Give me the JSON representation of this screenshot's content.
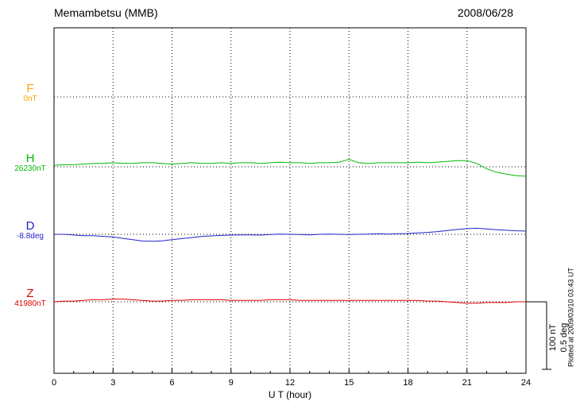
{
  "header": {
    "title": "Memambetsu (MMB)",
    "date": "2008/06/28"
  },
  "x_axis": {
    "label": "U T (hour)",
    "ticks": [
      0,
      3,
      6,
      9,
      12,
      15,
      18,
      21,
      24
    ]
  },
  "scale_bar": {
    "labels": [
      "100 nT",
      "0.5 deg"
    ]
  },
  "footer_note": "Plotted at 2009/03/10 03:43 UT",
  "colors": {
    "F": "#FFA500",
    "H": "#00BB00",
    "D": "#2222CC",
    "Z": "#DD0000",
    "axis": "#000000"
  },
  "chart_data": {
    "type": "line",
    "title": "Memambetsu (MMB)",
    "subtitle": "2008/06/28",
    "xlabel": "U T (hour)",
    "x_range": [
      0,
      24
    ],
    "x_ticks": [
      0,
      3,
      6,
      9,
      12,
      15,
      18,
      21,
      24
    ],
    "x_step_hours": 0.5,
    "grid": "dotted vertical at 3h intervals, dotted horizontal baseline per component",
    "legend_position": "left margin, one colored label per component",
    "scale": {
      "nT_per_bar": 100,
      "deg_per_bar": 0.5
    },
    "series": [
      {
        "name": "F",
        "baseline_label": "0nT",
        "baseline_value": 0,
        "unit": "nT",
        "note": "no visible trace, baseline only",
        "values": []
      },
      {
        "name": "H",
        "baseline_label": "26230nT",
        "baseline_value": 26230,
        "unit": "nT",
        "note": "offsets from baseline in nT",
        "values": [
          2,
          3,
          3,
          4,
          5,
          5,
          6,
          5,
          5,
          6,
          6,
          5,
          4,
          5,
          6,
          5,
          5,
          6,
          5,
          6,
          6,
          5,
          6,
          7,
          6,
          6,
          5,
          6,
          6,
          7,
          11,
          6,
          5,
          6,
          6,
          6,
          6,
          7,
          6,
          7,
          8,
          9,
          9,
          5,
          -3,
          -8,
          -11,
          -13,
          -14
        ]
      },
      {
        "name": "D",
        "baseline_label": "-8.8deg",
        "baseline_value": -8.8,
        "unit": "deg",
        "note": "offsets from baseline in degrees",
        "values": [
          0,
          0,
          -0.005,
          -0.01,
          -0.01,
          -0.015,
          -0.02,
          -0.03,
          -0.04,
          -0.05,
          -0.052,
          -0.048,
          -0.04,
          -0.032,
          -0.024,
          -0.016,
          -0.012,
          -0.008,
          -0.006,
          -0.004,
          -0.004,
          -0.006,
          -0.002,
          0.002,
          0,
          -0.002,
          -0.004,
          0,
          0.002,
          0,
          -0.002,
          0,
          0.002,
          0.004,
          0.002,
          0.004,
          0.006,
          0.01,
          0.014,
          0.02,
          0.028,
          0.036,
          0.042,
          0.045,
          0.04,
          0.034,
          0.03,
          0.026,
          0.024
        ]
      },
      {
        "name": "Z",
        "baseline_label": "41980nT",
        "baseline_value": 41980,
        "unit": "nT",
        "note": "offsets from baseline in nT",
        "values": [
          0,
          1,
          1,
          2,
          3,
          3,
          4,
          4,
          3,
          2,
          1,
          1,
          2,
          2,
          3,
          3,
          3,
          3,
          2,
          2,
          2,
          2,
          3,
          3,
          3,
          2,
          2,
          2,
          2,
          2,
          2,
          2,
          2,
          2,
          2,
          2,
          2,
          2,
          1,
          1,
          0,
          -1,
          -2,
          -2,
          -1,
          -1,
          -1,
          0,
          0
        ]
      }
    ]
  }
}
